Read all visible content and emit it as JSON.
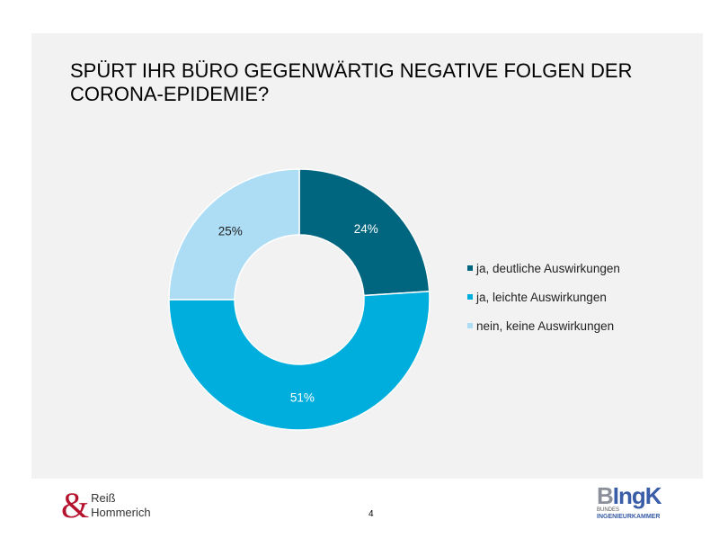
{
  "slide": {
    "title": "SPÜRT IHR BÜRO GEGENWÄRTIG NEGATIVE FOLGEN DER CORONA-EPIDEMIE?",
    "page_number": "4",
    "logo_left": {
      "symbol": "&",
      "line1": "Reiß",
      "line2": "Hommerich"
    },
    "logo_right": {
      "b": "B",
      "rest": "IngK",
      "line1": "BUNDES",
      "line2": "INGENIEURKAMMER"
    }
  },
  "chart_data": {
    "type": "pie",
    "donut": true,
    "start_angle_deg": 0,
    "direction": "clockwise",
    "legend_position": "right",
    "series": [
      {
        "name": "ja, deutliche Auswirkungen",
        "value": 24,
        "label": "24%",
        "color": "#00667f",
        "label_color": "#ffffff"
      },
      {
        "name": "ja, leichte Auswirkungen",
        "value": 51,
        "label": "51%",
        "color": "#00aedd",
        "label_color": "#ffffff"
      },
      {
        "name": "nein, keine Auswirkungen",
        "value": 25,
        "label": "25%",
        "color": "#addcf5",
        "label_color": "#222222"
      }
    ]
  }
}
